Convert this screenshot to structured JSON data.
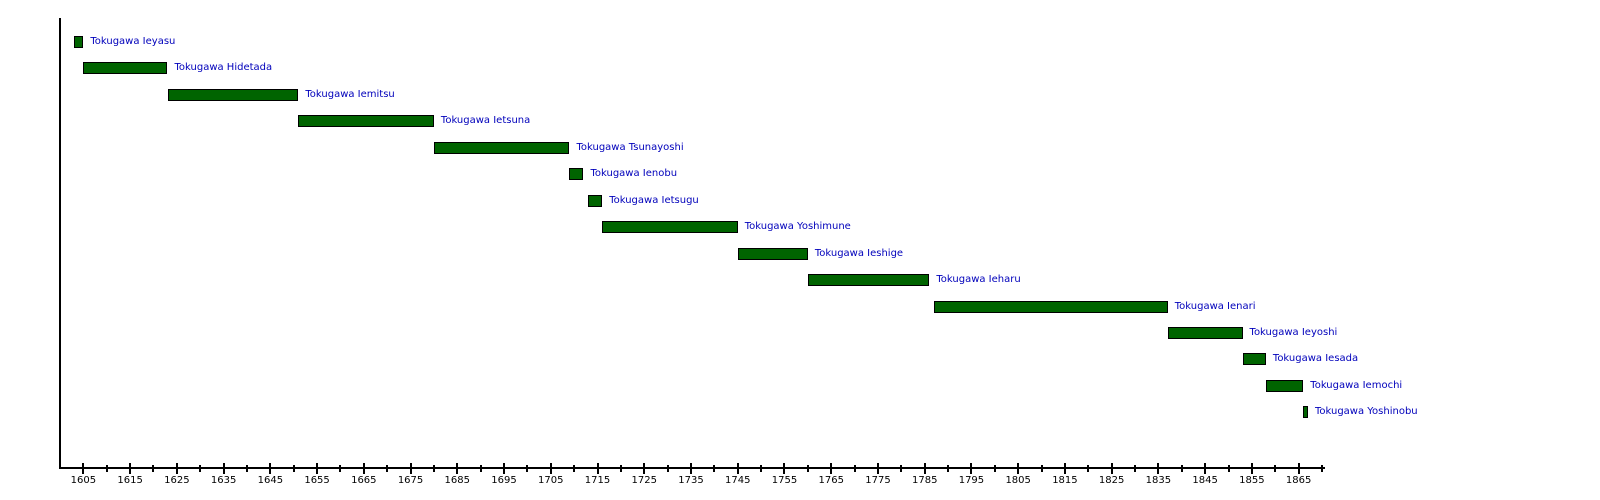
{
  "chart_data": {
    "type": "bar",
    "subtype": "horizontal-gantt-timeline",
    "title": "",
    "xlabel": "",
    "ylabel": "",
    "legend": "none",
    "grid": false,
    "x_axis": {
      "min": 1600,
      "max": 1870,
      "major_ticks": [
        1605,
        1615,
        1625,
        1635,
        1645,
        1655,
        1665,
        1675,
        1685,
        1695,
        1705,
        1715,
        1725,
        1735,
        1745,
        1755,
        1765,
        1775,
        1785,
        1795,
        1805,
        1815,
        1825,
        1835,
        1845,
        1855,
        1865
      ],
      "minor_tick_years": [
        1610,
        1620,
        1630,
        1640,
        1650,
        1660,
        1670,
        1680,
        1690,
        1700,
        1710,
        1720,
        1730,
        1740,
        1750,
        1760,
        1770,
        1780,
        1790,
        1800,
        1810,
        1820,
        1830,
        1840,
        1850,
        1860,
        1870
      ]
    },
    "bars": [
      {
        "label": "Tokugawa Ieyasu",
        "start": 1603,
        "end": 1605
      },
      {
        "label": "Tokugawa Hidetada",
        "start": 1605,
        "end": 1623
      },
      {
        "label": "Tokugawa Iemitsu",
        "start": 1623,
        "end": 1651
      },
      {
        "label": "Tokugawa Ietsuna",
        "start": 1651,
        "end": 1680
      },
      {
        "label": "Tokugawa Tsunayoshi",
        "start": 1680,
        "end": 1709
      },
      {
        "label": "Tokugawa Ienobu",
        "start": 1709,
        "end": 1712
      },
      {
        "label": "Tokugawa Ietsugu",
        "start": 1713,
        "end": 1716
      },
      {
        "label": "Tokugawa Yoshimune",
        "start": 1716,
        "end": 1745
      },
      {
        "label": "Tokugawa Ieshige",
        "start": 1745,
        "end": 1760
      },
      {
        "label": "Tokugawa Ieharu",
        "start": 1760,
        "end": 1786
      },
      {
        "label": "Tokugawa Ienari",
        "start": 1787,
        "end": 1837
      },
      {
        "label": "Tokugawa Ieyoshi",
        "start": 1837,
        "end": 1853
      },
      {
        "label": "Tokugawa Iesada",
        "start": 1853,
        "end": 1858
      },
      {
        "label": "Tokugawa Iemochi",
        "start": 1858,
        "end": 1866
      },
      {
        "label": "Tokugawa Yoshinobu",
        "start": 1866,
        "end": 1867
      }
    ],
    "colors": {
      "bar_fill": "#006400",
      "bar_border": "#000000",
      "bar_label": "#0000bb",
      "axis": "#000000",
      "tick_label": "#000000",
      "background": "#ffffff"
    }
  }
}
